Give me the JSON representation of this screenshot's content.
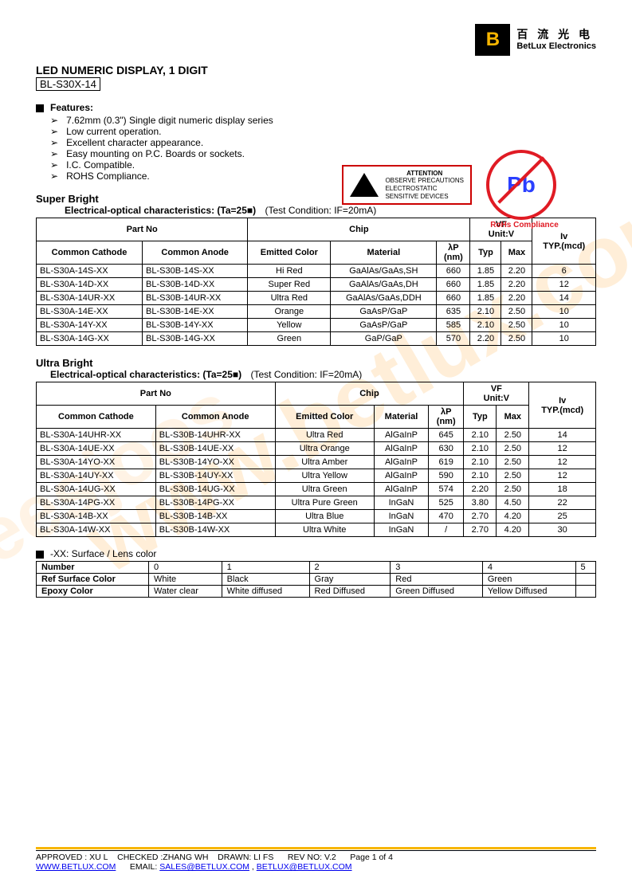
{
  "logo": {
    "cn": "百 流 光 电",
    "en": "BetLux Electronics"
  },
  "title": "LED NUMERIC DISPLAY, 1 DIGIT",
  "subtitle": "BL-S30X-14",
  "features": {
    "label": "Features:",
    "items": [
      "7.62mm (0.3\") Single digit numeric display series",
      "Low current operation.",
      "Excellent character appearance.",
      "Easy mounting on P.C. Boards or sockets.",
      "I.C. Compatible.",
      "ROHS Compliance."
    ]
  },
  "esd": {
    "title": "ATTENTION",
    "line1": "OBSERVE PRECAUTIONS",
    "line2": "ELECTROSTATIC",
    "line3": "SENSITIVE DEVICES"
  },
  "rohs": {
    "symbol": "Pb",
    "label": "RoHs Compliance"
  },
  "super_bright": {
    "title": "Super Bright",
    "subtitle": "Electrical-optical characteristics: (Ta=25■)",
    "condition": "(Test Condition: IF=20mA)",
    "headers": {
      "part": "Part No",
      "chip": "Chip",
      "vf": "VF",
      "vfu": "Unit:V",
      "iv": "Iv",
      "ivu": "TYP.(mcd)",
      "cc": "Common Cathode",
      "ca": "Common Anode",
      "ec": "Emitted Color",
      "mat": "Material",
      "lp": "λP",
      "lpu": "(nm)",
      "typ": "Typ",
      "max": "Max"
    },
    "rows": [
      {
        "cc": "BL-S30A-14S-XX",
        "ca": "BL-S30B-14S-XX",
        "ec": "Hi Red",
        "mat": "GaAlAs/GaAs,SH",
        "lp": "660",
        "typ": "1.85",
        "max": "2.20",
        "iv": "6"
      },
      {
        "cc": "BL-S30A-14D-XX",
        "ca": "BL-S30B-14D-XX",
        "ec": "Super Red",
        "mat": "GaAlAs/GaAs,DH",
        "lp": "660",
        "typ": "1.85",
        "max": "2.20",
        "iv": "12"
      },
      {
        "cc": "BL-S30A-14UR-XX",
        "ca": "BL-S30B-14UR-XX",
        "ec": "Ultra Red",
        "mat": "GaAlAs/GaAs,DDH",
        "lp": "660",
        "typ": "1.85",
        "max": "2.20",
        "iv": "14"
      },
      {
        "cc": "BL-S30A-14E-XX",
        "ca": "BL-S30B-14E-XX",
        "ec": "Orange",
        "mat": "GaAsP/GaP",
        "lp": "635",
        "typ": "2.10",
        "max": "2.50",
        "iv": "10"
      },
      {
        "cc": "BL-S30A-14Y-XX",
        "ca": "BL-S30B-14Y-XX",
        "ec": "Yellow",
        "mat": "GaAsP/GaP",
        "lp": "585",
        "typ": "2.10",
        "max": "2.50",
        "iv": "10"
      },
      {
        "cc": "BL-S30A-14G-XX",
        "ca": "BL-S30B-14G-XX",
        "ec": "Green",
        "mat": "GaP/GaP",
        "lp": "570",
        "typ": "2.20",
        "max": "2.50",
        "iv": "10"
      }
    ]
  },
  "ultra_bright": {
    "title": "Ultra Bright",
    "subtitle": "Electrical-optical characteristics: (Ta=25■)",
    "condition": "(Test Condition: IF=20mA)",
    "headers": {
      "part": "Part No",
      "chip": "Chip",
      "vf": "VF",
      "vfu": "Unit:V",
      "iv": "Iv",
      "ivu": "TYP.(mcd)",
      "cc": "Common Cathode",
      "ca": "Common Anode",
      "ec": "Emitted Color",
      "mat": "Material",
      "lp": "λP",
      "lpu": "(nm)",
      "typ": "Typ",
      "max": "Max"
    },
    "rows": [
      {
        "cc": "BL-S30A-14UHR-XX",
        "ca": "BL-S30B-14UHR-XX",
        "ec": "Ultra Red",
        "mat": "AlGaInP",
        "lp": "645",
        "typ": "2.10",
        "max": "2.50",
        "iv": "14"
      },
      {
        "cc": "BL-S30A-14UE-XX",
        "ca": "BL-S30B-14UE-XX",
        "ec": "Ultra Orange",
        "mat": "AlGaInP",
        "lp": "630",
        "typ": "2.10",
        "max": "2.50",
        "iv": "12"
      },
      {
        "cc": "BL-S30A-14YO-XX",
        "ca": "BL-S30B-14YO-XX",
        "ec": "Ultra Amber",
        "mat": "AlGaInP",
        "lp": "619",
        "typ": "2.10",
        "max": "2.50",
        "iv": "12"
      },
      {
        "cc": "BL-S30A-14UY-XX",
        "ca": "BL-S30B-14UY-XX",
        "ec": "Ultra Yellow",
        "mat": "AlGaInP",
        "lp": "590",
        "typ": "2.10",
        "max": "2.50",
        "iv": "12"
      },
      {
        "cc": "BL-S30A-14UG-XX",
        "ca": "BL-S30B-14UG-XX",
        "ec": "Ultra Green",
        "mat": "AlGaInP",
        "lp": "574",
        "typ": "2.20",
        "max": "2.50",
        "iv": "18"
      },
      {
        "cc": "BL-S30A-14PG-XX",
        "ca": "BL-S30B-14PG-XX",
        "ec": "Ultra Pure Green",
        "mat": "InGaN",
        "lp": "525",
        "typ": "3.80",
        "max": "4.50",
        "iv": "22"
      },
      {
        "cc": "BL-S30A-14B-XX",
        "ca": "BL-S30B-14B-XX",
        "ec": "Ultra Blue",
        "mat": "InGaN",
        "lp": "470",
        "typ": "2.70",
        "max": "4.20",
        "iv": "25"
      },
      {
        "cc": "BL-S30A-14W-XX",
        "ca": "BL-S30B-14W-XX",
        "ec": "Ultra White",
        "mat": "InGaN",
        "lp": "/",
        "typ": "2.70",
        "max": "4.20",
        "iv": "30"
      }
    ]
  },
  "lens": {
    "title": "-XX: Surface / Lens color",
    "row_headers": [
      "Number",
      "Ref Surface Color",
      "Epoxy Color"
    ],
    "cols": [
      "0",
      "1",
      "2",
      "3",
      "4",
      "5"
    ],
    "surface": [
      "White",
      "Black",
      "Gray",
      "Red",
      "Green",
      ""
    ],
    "epoxy": [
      "Water clear",
      "White diffused",
      "Red Diffused",
      "Green Diffused",
      "Yellow Diffused",
      ""
    ]
  },
  "footer": {
    "approved": "APPROVED : XU L",
    "checked": "CHECKED :ZHANG WH",
    "drawn": "DRAWN: LI FS",
    "rev": "REV NO: V.2",
    "page": "Page 1 of 4",
    "web": "WWW.BETLUX.COM",
    "email_lbl": "EMAIL:",
    "email1": "SALES@BETLUX.COM",
    "email2": "BETLUX@BETLUX.COM"
  }
}
